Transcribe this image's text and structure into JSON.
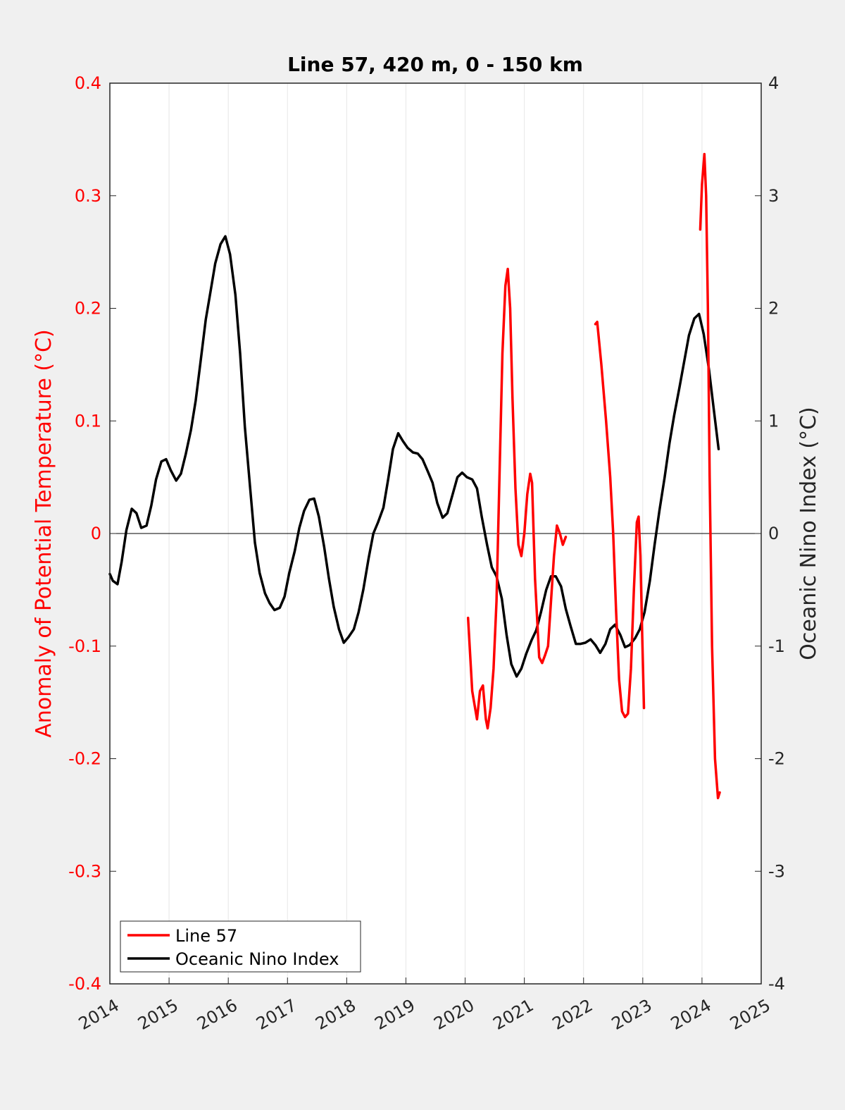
{
  "chart_data": {
    "type": "line",
    "title": "Line 57, 420 m, 0 - 150 km",
    "xlabel": "",
    "x_ticks": [
      "2014",
      "2015",
      "2016",
      "2017",
      "2018",
      "2019",
      "2020",
      "2021",
      "2022",
      "2023",
      "2024",
      "2025"
    ],
    "xlim": [
      2014,
      2025
    ],
    "left_axis": {
      "label": "Anomaly of Potential Temperature (°C)",
      "ylim": [
        -0.4,
        0.4
      ],
      "ticks": [
        "0.4",
        "0.3",
        "0.2",
        "0.1",
        "0",
        "-0.1",
        "-0.2",
        "-0.3",
        "-0.4"
      ],
      "color": "#ff0000"
    },
    "right_axis": {
      "label": "Oceanic Nino Index (°C)",
      "ylim": [
        -4,
        4
      ],
      "ticks": [
        "4",
        "3",
        "2",
        "1",
        "0",
        "-1",
        "-2",
        "-3",
        "-4"
      ],
      "color": "#000000"
    },
    "legend": {
      "position": "bottom-left",
      "entries": [
        "Line 57",
        "Oceanic Nino Index"
      ]
    },
    "series": [
      {
        "name": "Line 57",
        "axis": "left",
        "color": "#ff0000",
        "segments": [
          [
            [
              2020.05,
              -0.075
            ],
            [
              2020.12,
              -0.14
            ],
            [
              2020.2,
              -0.165
            ],
            [
              2020.25,
              -0.14
            ],
            [
              2020.3,
              -0.135
            ],
            [
              2020.35,
              -0.165
            ],
            [
              2020.38,
              -0.173
            ],
            [
              2020.43,
              -0.155
            ],
            [
              2020.48,
              -0.12
            ],
            [
              2020.53,
              -0.06
            ],
            [
              2020.58,
              0.05
            ],
            [
              2020.63,
              0.16
            ],
            [
              2020.68,
              0.22
            ],
            [
              2020.72,
              0.235
            ],
            [
              2020.76,
              0.2
            ],
            [
              2020.8,
              0.12
            ],
            [
              2020.85,
              0.04
            ],
            [
              2020.9,
              -0.01
            ],
            [
              2020.95,
              -0.02
            ],
            [
              2021.0,
              0.0
            ],
            [
              2021.05,
              0.035
            ],
            [
              2021.1,
              0.053
            ],
            [
              2021.13,
              0.045
            ],
            [
              2021.18,
              -0.04
            ],
            [
              2021.25,
              -0.11
            ],
            [
              2021.3,
              -0.115
            ],
            [
              2021.35,
              -0.108
            ],
            [
              2021.4,
              -0.1
            ],
            [
              2021.45,
              -0.06
            ],
            [
              2021.5,
              -0.02
            ],
            [
              2021.55,
              0.007
            ],
            [
              2021.6,
              0.0
            ],
            [
              2021.65,
              -0.01
            ],
            [
              2021.7,
              -0.003
            ]
          ],
          [
            [
              2022.2,
              0.186
            ],
            [
              2022.23,
              0.188
            ],
            [
              2022.3,
              0.15
            ],
            [
              2022.38,
              0.1
            ],
            [
              2022.45,
              0.05
            ],
            [
              2022.5,
              0.0
            ],
            [
              2022.55,
              -0.07
            ],
            [
              2022.6,
              -0.13
            ],
            [
              2022.65,
              -0.158
            ],
            [
              2022.7,
              -0.163
            ],
            [
              2022.75,
              -0.16
            ],
            [
              2022.8,
              -0.12
            ],
            [
              2022.85,
              -0.05
            ],
            [
              2022.9,
              0.01
            ],
            [
              2022.93,
              0.015
            ],
            [
              2022.96,
              -0.02
            ],
            [
              2022.99,
              -0.09
            ],
            [
              2023.02,
              -0.155
            ]
          ],
          [
            [
              2023.97,
              0.27
            ],
            [
              2024.0,
              0.31
            ],
            [
              2024.04,
              0.337
            ],
            [
              2024.07,
              0.3
            ],
            [
              2024.1,
              0.2
            ],
            [
              2024.13,
              0.05
            ],
            [
              2024.17,
              -0.1
            ],
            [
              2024.22,
              -0.2
            ],
            [
              2024.27,
              -0.235
            ],
            [
              2024.3,
              -0.23
            ]
          ]
        ]
      },
      {
        "name": "Oceanic Nino Index",
        "axis": "right",
        "color": "#000000",
        "segments": [
          [
            [
              2014.0,
              -0.36
            ],
            [
              2014.05,
              -0.42
            ],
            [
              2014.13,
              -0.45
            ],
            [
              2014.2,
              -0.25
            ],
            [
              2014.28,
              0.03
            ],
            [
              2014.37,
              0.22
            ],
            [
              2014.45,
              0.18
            ],
            [
              2014.53,
              0.05
            ],
            [
              2014.62,
              0.07
            ],
            [
              2014.7,
              0.25
            ],
            [
              2014.78,
              0.48
            ],
            [
              2014.87,
              0.64
            ],
            [
              2014.95,
              0.66
            ],
            [
              2015.03,
              0.56
            ],
            [
              2015.12,
              0.47
            ],
            [
              2015.2,
              0.53
            ],
            [
              2015.28,
              0.7
            ],
            [
              2015.37,
              0.92
            ],
            [
              2015.45,
              1.18
            ],
            [
              2015.53,
              1.52
            ],
            [
              2015.62,
              1.9
            ],
            [
              2015.7,
              2.15
            ],
            [
              2015.78,
              2.4
            ],
            [
              2015.87,
              2.57
            ],
            [
              2015.95,
              2.64
            ],
            [
              2016.03,
              2.48
            ],
            [
              2016.12,
              2.12
            ],
            [
              2016.2,
              1.6
            ],
            [
              2016.28,
              0.95
            ],
            [
              2016.37,
              0.4
            ],
            [
              2016.45,
              -0.08
            ],
            [
              2016.53,
              -0.35
            ],
            [
              2016.62,
              -0.53
            ],
            [
              2016.7,
              -0.62
            ],
            [
              2016.78,
              -0.68
            ],
            [
              2016.87,
              -0.66
            ],
            [
              2016.95,
              -0.56
            ],
            [
              2017.03,
              -0.35
            ],
            [
              2017.12,
              -0.16
            ],
            [
              2017.2,
              0.05
            ],
            [
              2017.28,
              0.2
            ],
            [
              2017.37,
              0.3
            ],
            [
              2017.45,
              0.31
            ],
            [
              2017.53,
              0.15
            ],
            [
              2017.62,
              -0.12
            ],
            [
              2017.7,
              -0.4
            ],
            [
              2017.78,
              -0.65
            ],
            [
              2017.87,
              -0.85
            ],
            [
              2017.95,
              -0.97
            ],
            [
              2018.03,
              -0.92
            ],
            [
              2018.12,
              -0.85
            ],
            [
              2018.2,
              -0.7
            ],
            [
              2018.28,
              -0.5
            ],
            [
              2018.37,
              -0.22
            ],
            [
              2018.45,
              0.0
            ],
            [
              2018.53,
              0.1
            ],
            [
              2018.62,
              0.23
            ],
            [
              2018.7,
              0.48
            ],
            [
              2018.78,
              0.75
            ],
            [
              2018.87,
              0.89
            ],
            [
              2018.95,
              0.82
            ],
            [
              2019.03,
              0.76
            ],
            [
              2019.12,
              0.72
            ],
            [
              2019.2,
              0.71
            ],
            [
              2019.28,
              0.66
            ],
            [
              2019.37,
              0.55
            ],
            [
              2019.45,
              0.45
            ],
            [
              2019.53,
              0.27
            ],
            [
              2019.62,
              0.14
            ],
            [
              2019.7,
              0.18
            ],
            [
              2019.78,
              0.33
            ],
            [
              2019.87,
              0.5
            ],
            [
              2019.95,
              0.54
            ],
            [
              2020.03,
              0.5
            ],
            [
              2020.12,
              0.48
            ],
            [
              2020.2,
              0.4
            ],
            [
              2020.28,
              0.15
            ],
            [
              2020.37,
              -0.1
            ],
            [
              2020.45,
              -0.3
            ],
            [
              2020.53,
              -0.38
            ],
            [
              2020.62,
              -0.58
            ],
            [
              2020.7,
              -0.9
            ],
            [
              2020.78,
              -1.16
            ],
            [
              2020.87,
              -1.27
            ],
            [
              2020.95,
              -1.2
            ],
            [
              2021.03,
              -1.07
            ],
            [
              2021.12,
              -0.95
            ],
            [
              2021.2,
              -0.86
            ],
            [
              2021.28,
              -0.7
            ],
            [
              2021.37,
              -0.5
            ],
            [
              2021.45,
              -0.38
            ],
            [
              2021.53,
              -0.38
            ],
            [
              2021.62,
              -0.47
            ],
            [
              2021.7,
              -0.67
            ],
            [
              2021.78,
              -0.82
            ],
            [
              2021.87,
              -0.98
            ],
            [
              2021.95,
              -0.98
            ],
            [
              2022.03,
              -0.97
            ],
            [
              2022.12,
              -0.94
            ],
            [
              2022.2,
              -0.99
            ],
            [
              2022.28,
              -1.06
            ],
            [
              2022.37,
              -0.98
            ],
            [
              2022.45,
              -0.85
            ],
            [
              2022.53,
              -0.81
            ],
            [
              2022.62,
              -0.9
            ],
            [
              2022.7,
              -1.01
            ],
            [
              2022.78,
              -0.99
            ],
            [
              2022.87,
              -0.93
            ],
            [
              2022.95,
              -0.85
            ],
            [
              2023.03,
              -0.7
            ],
            [
              2023.12,
              -0.42
            ],
            [
              2023.2,
              -0.1
            ],
            [
              2023.28,
              0.2
            ],
            [
              2023.37,
              0.5
            ],
            [
              2023.45,
              0.8
            ],
            [
              2023.53,
              1.05
            ],
            [
              2023.62,
              1.3
            ],
            [
              2023.7,
              1.53
            ],
            [
              2023.78,
              1.76
            ],
            [
              2023.87,
              1.91
            ],
            [
              2023.95,
              1.95
            ],
            [
              2024.03,
              1.77
            ],
            [
              2024.12,
              1.45
            ],
            [
              2024.2,
              1.1
            ],
            [
              2024.28,
              0.75
            ]
          ]
        ]
      }
    ]
  }
}
